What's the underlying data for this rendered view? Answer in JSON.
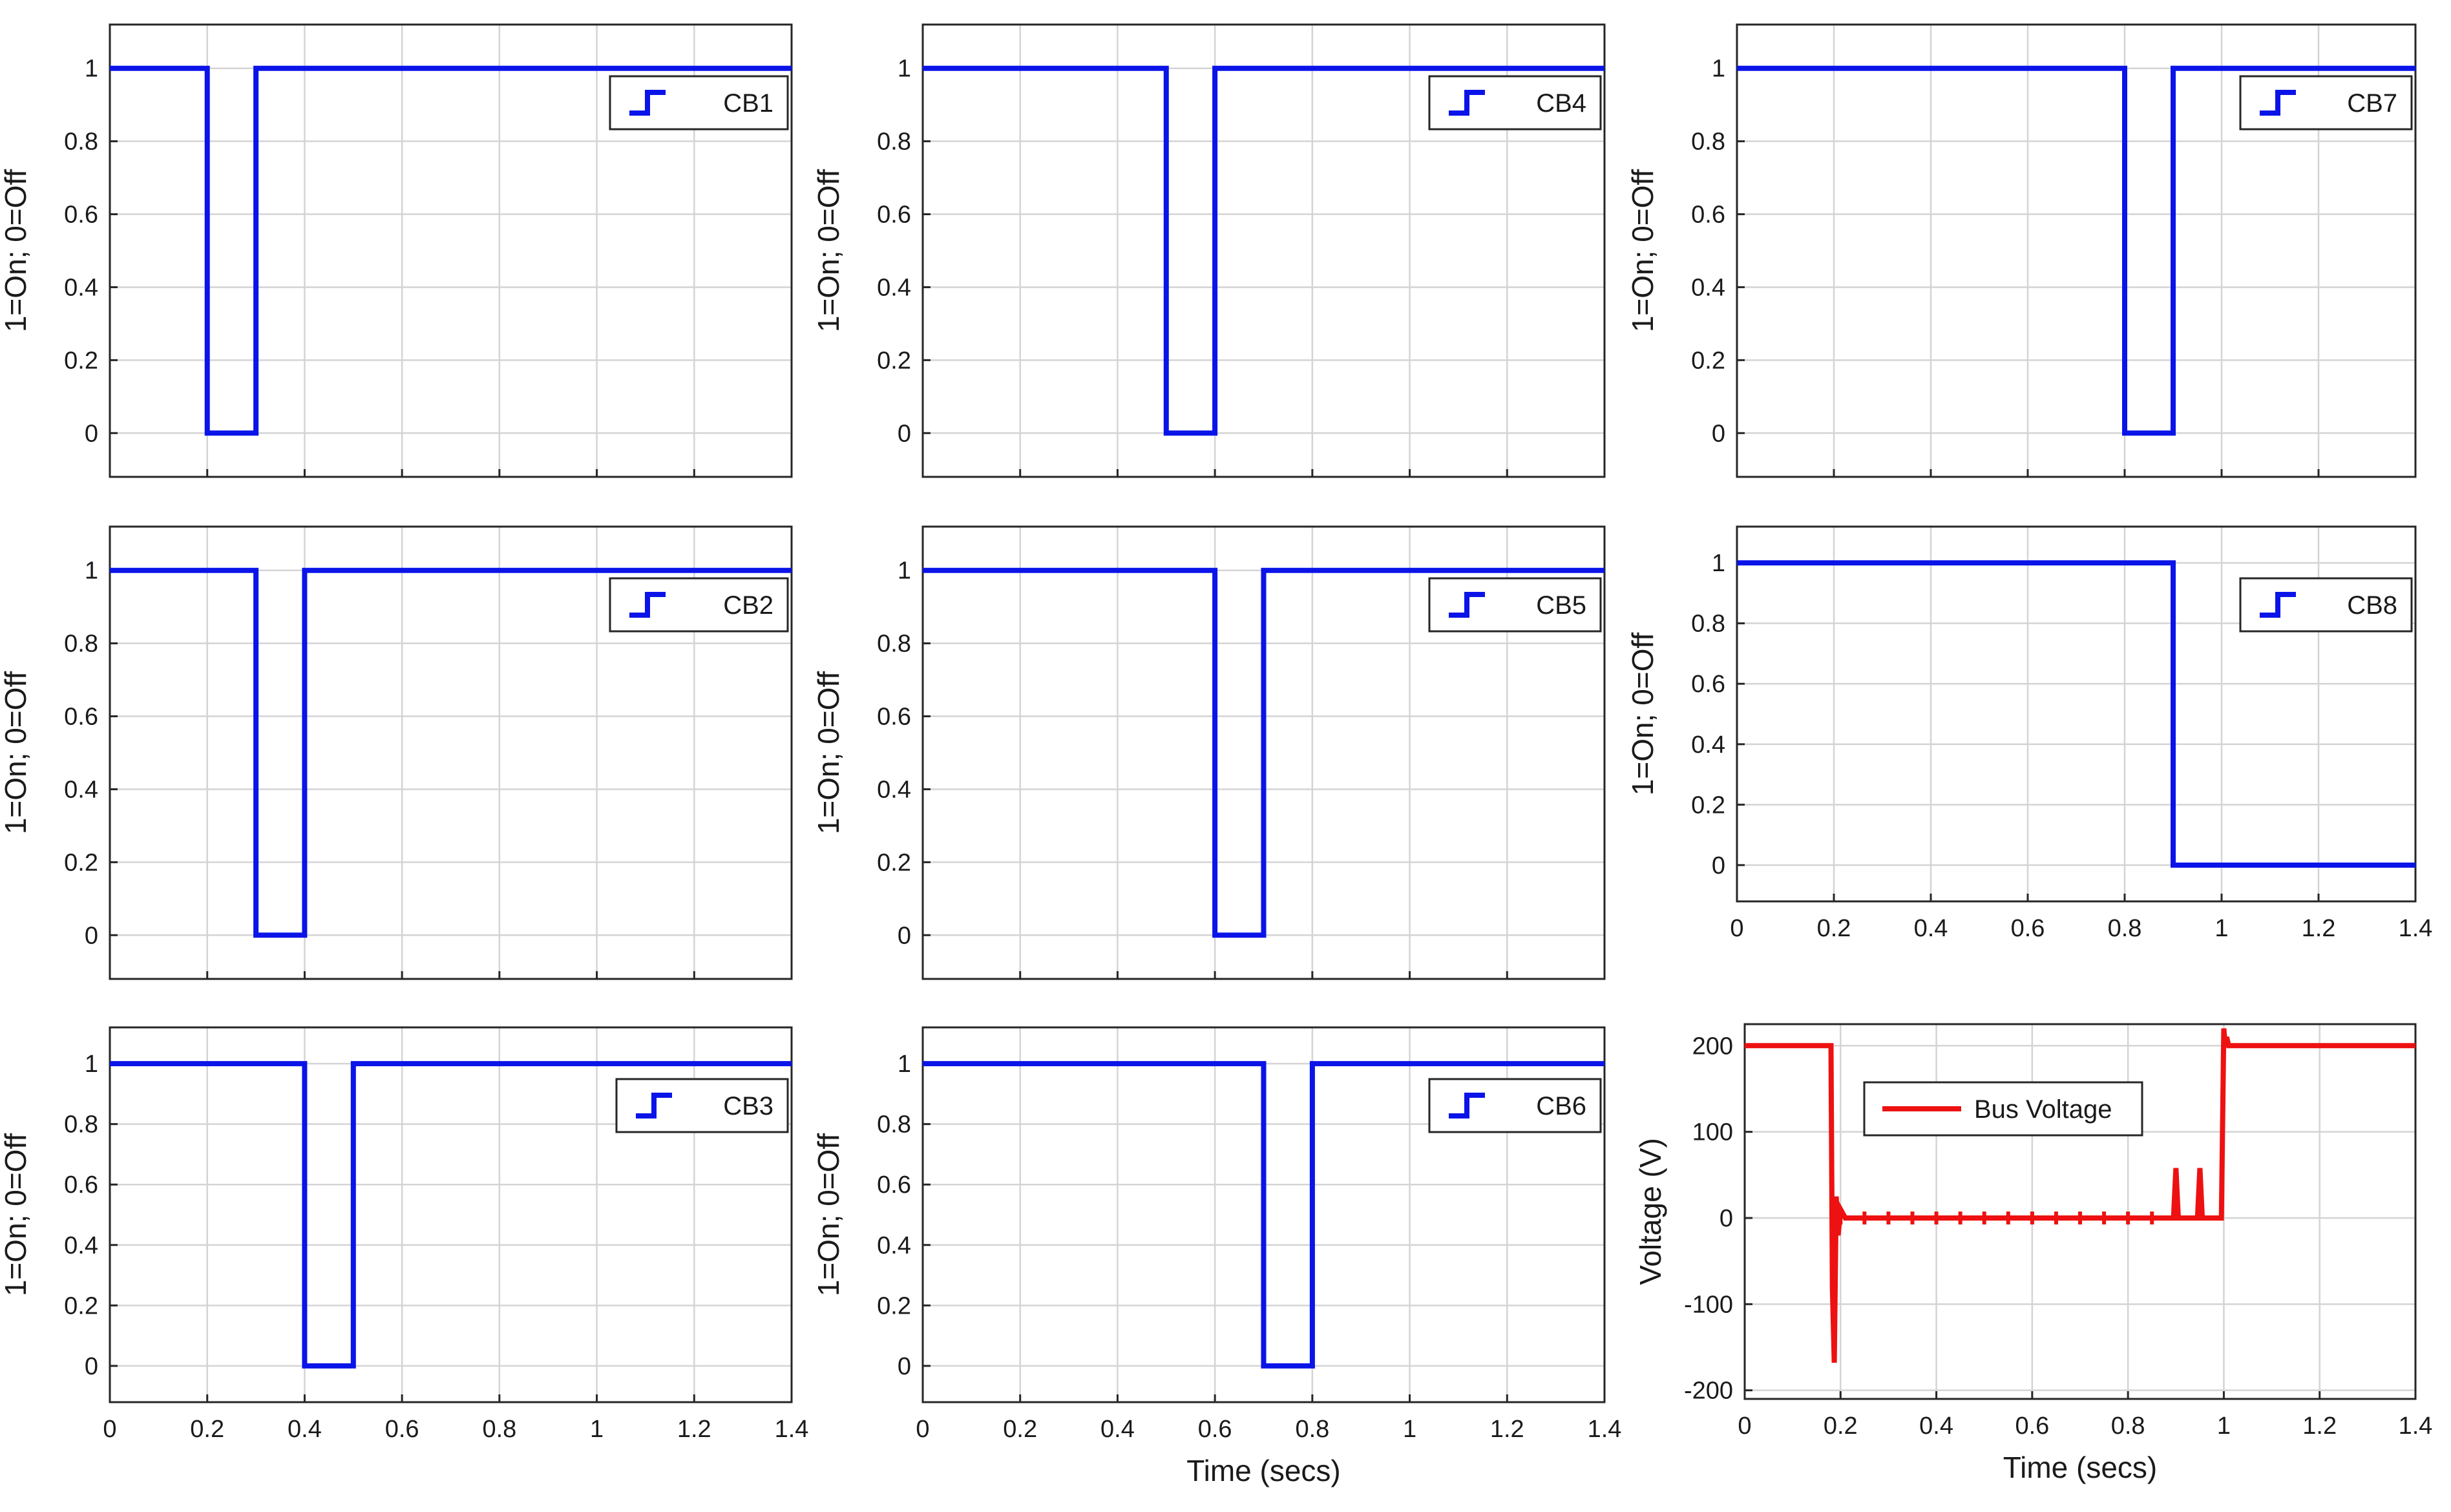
{
  "chart_data": [
    {
      "type": "line",
      "title": "",
      "xlabel": "",
      "ylabel": "1=On; 0=Off",
      "xlim": [
        0,
        1.4
      ],
      "ylim": [
        -0.12,
        1.12
      ],
      "xticks": [
        "0",
        "0.2",
        "0.4",
        "0.6",
        "0.8",
        "1",
        "1.2",
        "1.4"
      ],
      "yticks": [
        "0",
        "0.2",
        "0.4",
        "0.6",
        "0.8",
        "1"
      ],
      "grid": true,
      "legend_position": "top-right",
      "series": [
        {
          "name": "CB1",
          "color": "#0a14e8",
          "style": "step",
          "x": [
            0,
            0.2,
            0.2,
            0.3,
            0.3,
            1.4
          ],
          "y": [
            1,
            1,
            0,
            0,
            1,
            1
          ]
        }
      ]
    },
    {
      "type": "line",
      "title": "",
      "xlabel": "",
      "ylabel": "1=On; 0=Off",
      "xlim": [
        0,
        1.4
      ],
      "ylim": [
        -0.12,
        1.12
      ],
      "xticks": [
        "0",
        "0.2",
        "0.4",
        "0.6",
        "0.8",
        "1",
        "1.2",
        "1.4"
      ],
      "yticks": [
        "0",
        "0.2",
        "0.4",
        "0.6",
        "0.8",
        "1"
      ],
      "grid": true,
      "legend_position": "top-right",
      "series": [
        {
          "name": "CB4",
          "color": "#0a14e8",
          "style": "step",
          "x": [
            0,
            0.5,
            0.5,
            0.6,
            0.6,
            1.4
          ],
          "y": [
            1,
            1,
            0,
            0,
            1,
            1
          ]
        }
      ]
    },
    {
      "type": "line",
      "title": "",
      "xlabel": "",
      "ylabel": "1=On; 0=Off",
      "xlim": [
        0,
        1.4
      ],
      "ylim": [
        -0.12,
        1.12
      ],
      "xticks": [
        "0",
        "0.2",
        "0.4",
        "0.6",
        "0.8",
        "1",
        "1.2",
        "1.4"
      ],
      "yticks": [
        "0",
        "0.2",
        "0.4",
        "0.6",
        "0.8",
        "1"
      ],
      "grid": true,
      "legend_position": "top-right",
      "series": [
        {
          "name": "CB7",
          "color": "#0a14e8",
          "style": "step",
          "x": [
            0,
            0.8,
            0.8,
            0.9,
            0.9,
            1.4
          ],
          "y": [
            1,
            1,
            0,
            0,
            1,
            1
          ]
        }
      ]
    },
    {
      "type": "line",
      "title": "",
      "xlabel": "",
      "ylabel": "1=On; 0=Off",
      "xlim": [
        0,
        1.4
      ],
      "ylim": [
        -0.12,
        1.12
      ],
      "xticks": [
        "0",
        "0.2",
        "0.4",
        "0.6",
        "0.8",
        "1",
        "1.2",
        "1.4"
      ],
      "yticks": [
        "0",
        "0.2",
        "0.4",
        "0.6",
        "0.8",
        "1"
      ],
      "grid": true,
      "legend_position": "top-right",
      "series": [
        {
          "name": "CB2",
          "color": "#0a14e8",
          "style": "step",
          "x": [
            0,
            0.3,
            0.3,
            0.4,
            0.4,
            1.4
          ],
          "y": [
            1,
            1,
            0,
            0,
            1,
            1
          ]
        }
      ]
    },
    {
      "type": "line",
      "title": "",
      "xlabel": "",
      "ylabel": "1=On; 0=Off",
      "xlim": [
        0,
        1.4
      ],
      "ylim": [
        -0.12,
        1.12
      ],
      "xticks": [
        "0",
        "0.2",
        "0.4",
        "0.6",
        "0.8",
        "1",
        "1.2",
        "1.4"
      ],
      "yticks": [
        "0",
        "0.2",
        "0.4",
        "0.6",
        "0.8",
        "1"
      ],
      "grid": true,
      "legend_position": "top-right",
      "series": [
        {
          "name": "CB5",
          "color": "#0a14e8",
          "style": "step",
          "x": [
            0,
            0.6,
            0.6,
            0.7,
            0.7,
            1.4
          ],
          "y": [
            1,
            1,
            0,
            0,
            1,
            1
          ]
        }
      ]
    },
    {
      "type": "line",
      "title": "",
      "xlabel": "",
      "ylabel": "1=On; 0=Off",
      "xlim": [
        0,
        1.4
      ],
      "ylim": [
        -0.12,
        1.12
      ],
      "xticks": [
        "0",
        "0.2",
        "0.4",
        "0.6",
        "0.8",
        "1",
        "1.2",
        "1.4"
      ],
      "yticks": [
        "0",
        "0.2",
        "0.4",
        "0.6",
        "0.8",
        "1"
      ],
      "grid": true,
      "legend_position": "top-right",
      "series": [
        {
          "name": "CB8",
          "color": "#0a14e8",
          "style": "step",
          "x": [
            0,
            0.9,
            0.9,
            1.4
          ],
          "y": [
            1,
            1,
            0,
            0
          ]
        }
      ]
    },
    {
      "type": "line",
      "title": "",
      "xlabel": "",
      "ylabel": "1=On; 0=Off",
      "xlim": [
        0,
        1.4
      ],
      "ylim": [
        -0.12,
        1.12
      ],
      "xticks": [
        "0",
        "0.2",
        "0.4",
        "0.6",
        "0.8",
        "1",
        "1.2",
        "1.4"
      ],
      "yticks": [
        "0",
        "0.2",
        "0.4",
        "0.6",
        "0.8",
        "1"
      ],
      "grid": true,
      "legend_position": "top-right",
      "series": [
        {
          "name": "CB3",
          "color": "#0a14e8",
          "style": "step",
          "x": [
            0,
            0.4,
            0.4,
            0.5,
            0.5,
            1.4
          ],
          "y": [
            1,
            1,
            0,
            0,
            1,
            1
          ]
        }
      ]
    },
    {
      "type": "line",
      "title": "",
      "xlabel": "Time (secs)",
      "ylabel": "1=On; 0=Off",
      "xlim": [
        0,
        1.4
      ],
      "ylim": [
        -0.12,
        1.12
      ],
      "xticks": [
        "0",
        "0.2",
        "0.4",
        "0.6",
        "0.8",
        "1",
        "1.2",
        "1.4"
      ],
      "yticks": [
        "0",
        "0.2",
        "0.4",
        "0.6",
        "0.8",
        "1"
      ],
      "grid": true,
      "legend_position": "top-right",
      "series": [
        {
          "name": "CB6",
          "color": "#0a14e8",
          "style": "step",
          "x": [
            0,
            0.7,
            0.7,
            0.8,
            0.8,
            1.4
          ],
          "y": [
            1,
            1,
            0,
            0,
            1,
            1
          ]
        }
      ]
    },
    {
      "type": "line",
      "title": "",
      "xlabel": "Time (secs)",
      "ylabel": "Voltage (V)",
      "xlim": [
        0,
        1.4
      ],
      "ylim": [
        -210,
        225
      ],
      "xticks": [
        "0",
        "0.2",
        "0.4",
        "0.6",
        "0.8",
        "1",
        "1.2",
        "1.4"
      ],
      "yticks": [
        "-200",
        "-100",
        "0",
        "100",
        "200"
      ],
      "grid": true,
      "legend_position": "top-left",
      "series": [
        {
          "name": "Bus Voltage",
          "color": "#ee1111",
          "style": "line",
          "x": [
            0,
            0.18,
            0.183,
            0.187,
            0.191,
            0.195,
            0.2,
            0.21,
            0.25,
            0.3,
            0.35,
            0.4,
            0.45,
            0.5,
            0.55,
            0.6,
            0.65,
            0.7,
            0.75,
            0.8,
            0.85,
            0.895,
            0.9,
            0.905,
            0.91,
            0.945,
            0.95,
            0.955,
            0.96,
            0.995,
            1.0,
            1.003,
            1.006,
            1.01,
            1.4
          ],
          "y": [
            200,
            200,
            -80,
            -168,
            25,
            -20,
            10,
            0,
            0,
            0,
            0,
            0,
            0,
            0,
            0,
            0,
            0,
            0,
            0,
            0,
            0,
            0,
            58,
            0,
            0,
            0,
            58,
            0,
            0,
            0,
            220,
            200,
            210,
            200,
            200
          ]
        }
      ]
    }
  ]
}
